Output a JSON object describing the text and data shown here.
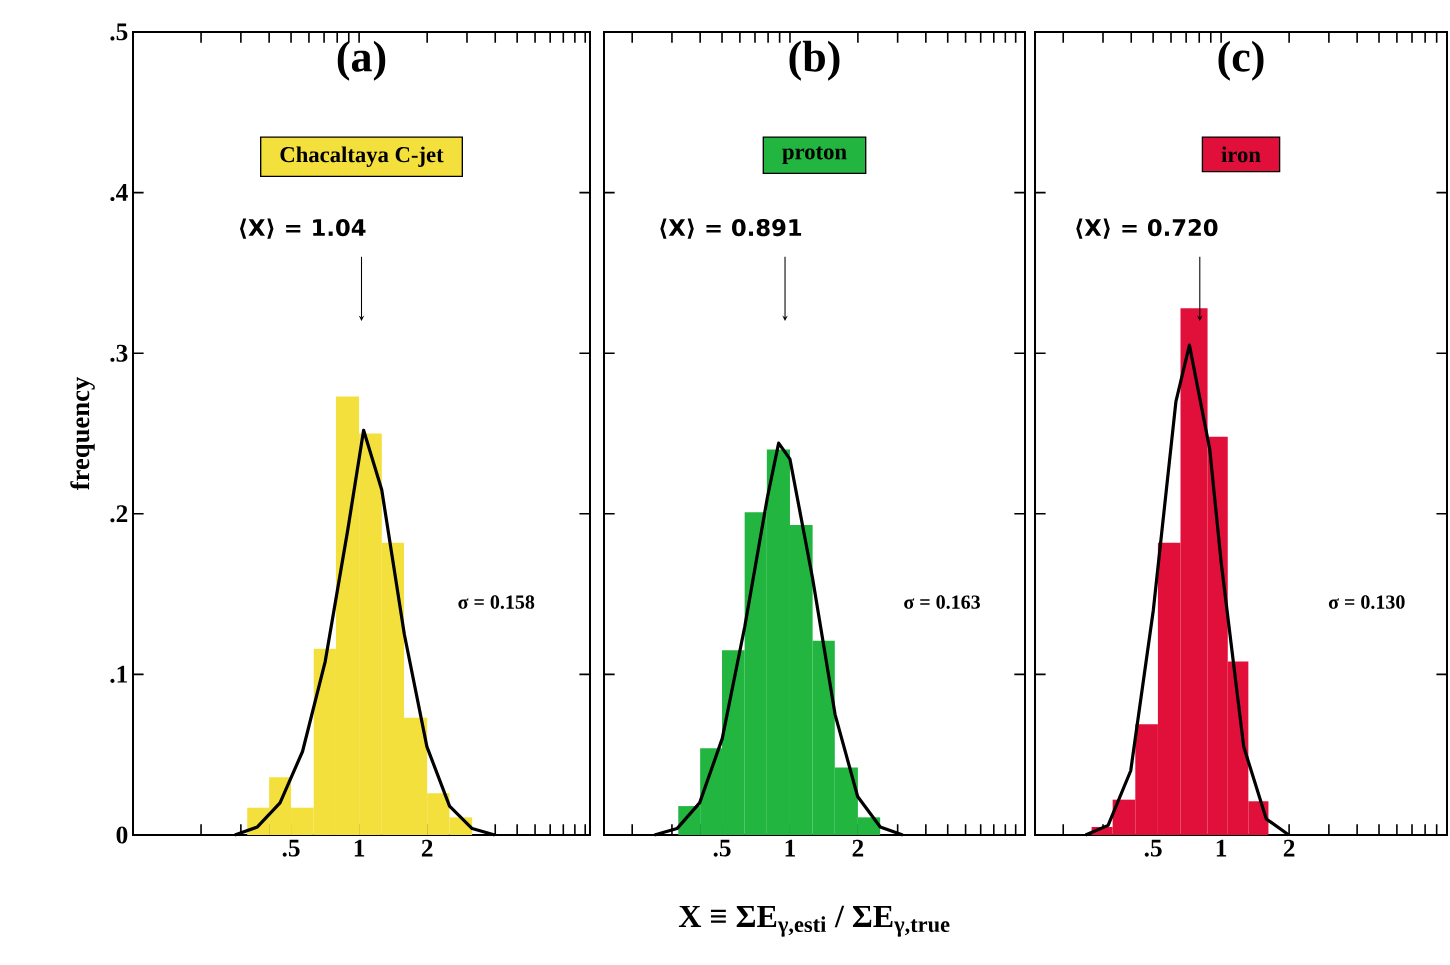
{
  "chart_data": [
    {
      "type": "histogram",
      "title": "(a)",
      "subtitle": "Chacaltaya C-jet",
      "ylabel": "frequency",
      "annotations": [
        "⟨X⟩ = 1.04",
        "σ = 0.158"
      ],
      "series": [
        {
          "bins": [
            0.32,
            0.4,
            0.5,
            0.63,
            0.79,
            1.0,
            1.26,
            1.58,
            2.0,
            2.51,
            3.16
          ],
          "values": [
            0.017,
            0.036,
            0.017,
            0.116,
            0.273,
            0.25,
            0.182,
            0.073,
            0.026,
            0.011
          ],
          "color": "#f4e03c"
        },
        {
          "type": "line",
          "color": "#000000",
          "x": [
            0.282,
            0.355,
            0.447,
            0.562,
            0.708,
            0.891,
            1.047,
            1.259,
            1.585,
            1.995,
            2.512,
            3.162,
            3.98
          ],
          "values": [
            0.0,
            0.005,
            0.02,
            0.052,
            0.108,
            0.19,
            0.252,
            0.215,
            0.125,
            0.055,
            0.018,
            0.004,
            0.0
          ]
        }
      ],
      "log": "x",
      "xlim": [
        0.1,
        10.5
      ],
      "ylim": [
        0,
        0.5
      ],
      "xticks": [
        {
          "value": 0.2,
          "label": null
        },
        {
          "value": 0.3,
          "label": null
        },
        {
          "value": 0.4,
          "label": null
        },
        {
          "value": 0.5,
          "label": ".5"
        },
        {
          "value": 0.6,
          "label": null
        },
        {
          "value": 0.7,
          "label": null
        },
        {
          "value": 0.8,
          "label": null
        },
        {
          "value": 0.9,
          "label": null
        },
        1,
        2,
        {
          "value": 3,
          "label": null
        },
        {
          "value": 4,
          "label": null
        },
        {
          "value": 5,
          "label": null
        },
        {
          "value": 6,
          "label": null
        },
        {
          "value": 7,
          "label": null
        },
        {
          "value": 8,
          "label": null
        },
        {
          "value": 9,
          "label": null
        },
        {
          "value": 10,
          "label": null
        }
      ],
      "yticks": [
        0,
        {
          "value": 0.1,
          "label": ".1"
        },
        {
          "value": 0.2,
          "label": ".2"
        },
        {
          "value": 0.3,
          "label": ".3"
        },
        {
          "value": 0.4,
          "label": ".4"
        },
        {
          "value": 0.5,
          "label": ".5"
        }
      ]
    },
    {
      "type": "histogram",
      "title": "(b)",
      "subtitle": "proton",
      "xlabel": "X ≡ ΣE$_{γ,esti}$ / ΣE$_{γ,true}$",
      "annotations": [
        "⟨X⟩ = 0.891",
        "σ = 0.163"
      ],
      "series": [
        {
          "bins": [
            0.32,
            0.4,
            0.5,
            0.63,
            0.79,
            1.0,
            1.26,
            1.58,
            2.0,
            2.51
          ],
          "values": [
            0.018,
            0.054,
            0.115,
            0.201,
            0.24,
            0.193,
            0.121,
            0.042,
            0.011
          ],
          "color": "#22b540"
        },
        {
          "type": "line",
          "color": "#000000",
          "x": [
            0.251,
            0.316,
            0.398,
            0.501,
            0.631,
            0.794,
            0.891,
            1.0,
            1.259,
            1.585,
            1.995,
            2.512,
            3.162
          ],
          "values": [
            0.0,
            0.004,
            0.02,
            0.06,
            0.13,
            0.21,
            0.244,
            0.234,
            0.16,
            0.075,
            0.024,
            0.005,
            0.0
          ]
        }
      ],
      "log": "x",
      "xlim": [
        0.15,
        11
      ],
      "ylim": [
        0,
        0.5
      ],
      "tick_labels": "x",
      "xticks": [
        {
          "value": 0.2,
          "label": null
        },
        {
          "value": 0.3,
          "label": null
        },
        {
          "value": 0.4,
          "label": null
        },
        {
          "value": 0.5,
          "label": ".5"
        },
        {
          "value": 0.6,
          "label": null
        },
        {
          "value": 0.7,
          "label": null
        },
        {
          "value": 0.8,
          "label": null
        },
        {
          "value": 0.9,
          "label": null
        },
        1,
        2,
        {
          "value": 3,
          "label": null
        },
        {
          "value": 4,
          "label": null
        },
        {
          "value": 5,
          "label": null
        },
        {
          "value": 6,
          "label": null
        },
        {
          "value": 7,
          "label": null
        },
        {
          "value": 8,
          "label": null
        },
        {
          "value": 9,
          "label": null
        },
        {
          "value": 10,
          "label": null
        }
      ],
      "yticks": [
        {
          "value": 0,
          "label": null
        },
        {
          "value": 0.1,
          "label": null
        },
        {
          "value": 0.2,
          "label": null
        },
        {
          "value": 0.3,
          "label": null
        },
        {
          "value": 0.4,
          "label": null
        },
        {
          "value": 0.5,
          "label": null
        }
      ]
    },
    {
      "type": "histogram",
      "title": "(c)",
      "subtitle": "iron",
      "annotations": [
        "⟨X⟩ = 0.720",
        "σ = 0.130"
      ],
      "series": [
        {
          "bins": [
            0.267,
            0.331,
            0.417,
            0.525,
            0.661,
            0.871,
            1.07,
            1.32,
            1.62
          ],
          "values": [
            0.005,
            0.022,
            0.069,
            0.182,
            0.328,
            0.248,
            0.108,
            0.021
          ],
          "color": "#e0103a"
        },
        {
          "type": "line",
          "color": "#000000",
          "x": [
            0.251,
            0.316,
            0.398,
            0.501,
            0.631,
            0.724,
            0.891,
            1.0,
            1.259,
            1.585,
            1.995
          ],
          "values": [
            0.0,
            0.006,
            0.04,
            0.14,
            0.27,
            0.305,
            0.24,
            0.17,
            0.055,
            0.01,
            0.0
          ]
        }
      ],
      "log": "x",
      "xlim": [
        0.15,
        10
      ],
      "ylim": [
        0,
        0.5
      ],
      "tick_labels": "x",
      "xticks": [
        {
          "value": 0.2,
          "label": null
        },
        {
          "value": 0.3,
          "label": null
        },
        {
          "value": 0.4,
          "label": null
        },
        {
          "value": 0.5,
          "label": ".5"
        },
        {
          "value": 0.6,
          "label": null
        },
        {
          "value": 0.7,
          "label": null
        },
        {
          "value": 0.8,
          "label": null
        },
        {
          "value": 0.9,
          "label": null
        },
        1,
        2,
        {
          "value": 3,
          "label": null
        },
        {
          "value": 4,
          "label": null
        },
        {
          "value": 5,
          "label": null
        },
        {
          "value": 6,
          "label": null
        },
        {
          "value": 7,
          "label": null
        },
        {
          "value": 8,
          "label": null
        },
        {
          "value": 9,
          "label": null
        },
        {
          "value": 10,
          "label": null
        }
      ],
      "yticks": [
        {
          "value": 0,
          "label": null
        },
        {
          "value": 0.1,
          "label": null
        },
        {
          "value": 0.2,
          "label": null
        },
        {
          "value": 0.3,
          "label": null
        },
        {
          "value": 0.4,
          "label": null
        },
        {
          "value": 0.5,
          "label": null
        }
      ]
    }
  ]
}
